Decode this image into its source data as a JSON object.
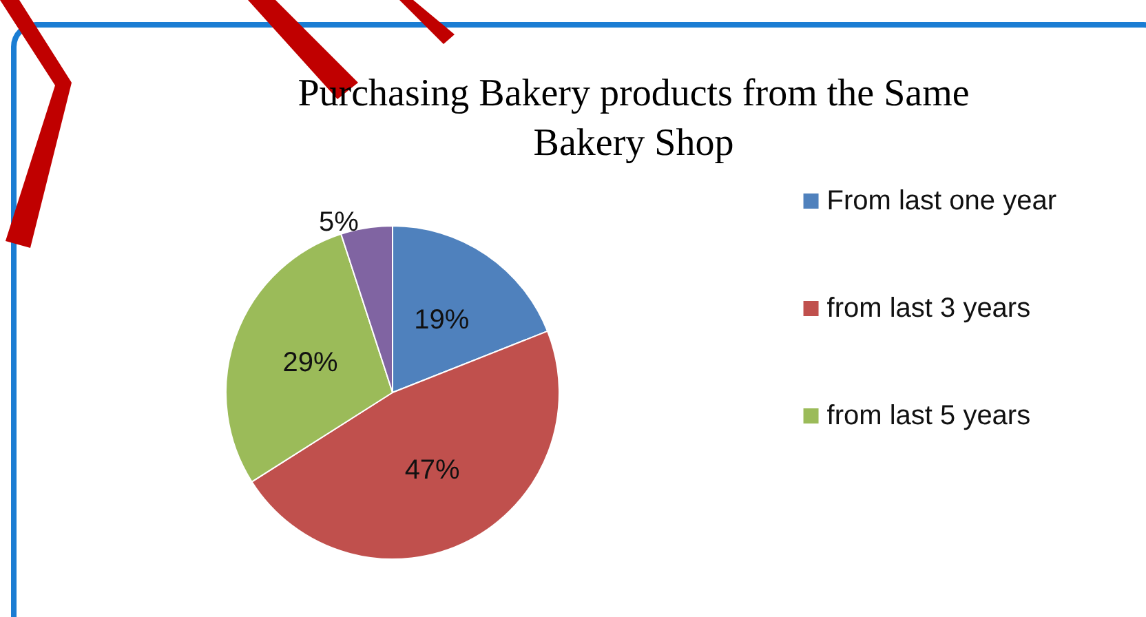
{
  "chart_data": {
    "type": "pie",
    "title": "Purchasing Bakery products from the Same\nBakery Shop",
    "categories": [
      "From last one year",
      "from last 3 years",
      "from last 5 years",
      null
    ],
    "values": [
      19,
      47,
      29,
      5
    ],
    "colors": [
      "#4f81bd",
      "#c0504d",
      "#9bbb59",
      "#8064a2"
    ],
    "value_labels": [
      "19%",
      "47%",
      "29%",
      "5%"
    ],
    "legend": "right"
  }
}
